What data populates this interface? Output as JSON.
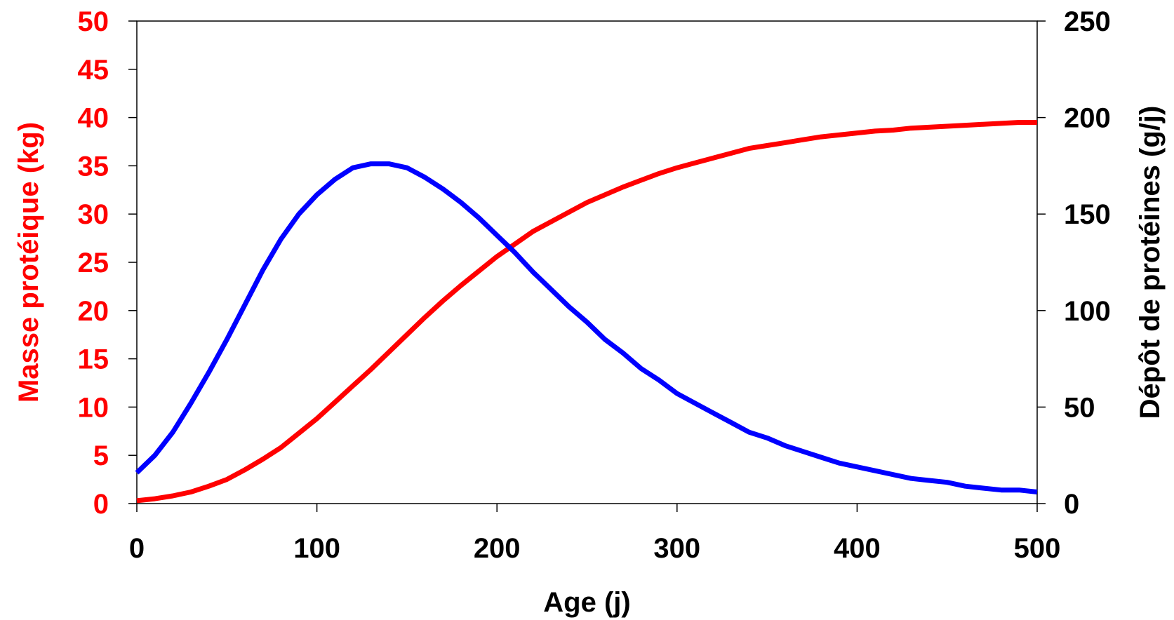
{
  "chart_data": {
    "type": "line",
    "xlabel": "Age (j)",
    "ylabel_left": "Masse protéique (kg)",
    "ylabel_right": "Dépôt de protéines (g/j)",
    "xlim": [
      0,
      500
    ],
    "ylim_left": [
      0,
      50
    ],
    "ylim_right": [
      0,
      250
    ],
    "x_ticks": [
      "0",
      "100",
      "200",
      "300",
      "400",
      "500"
    ],
    "y_left_ticks": [
      "0",
      "5",
      "10",
      "15",
      "20",
      "25",
      "30",
      "35",
      "40",
      "45",
      "50"
    ],
    "y_right_ticks": [
      "0",
      "50",
      "100",
      "150",
      "200",
      "250"
    ],
    "grid": false,
    "colors": {
      "left_axis_text": "#ff0000",
      "right_axis_text": "#000000",
      "masse_series": "#ff0000",
      "depot_series": "#0000ff"
    },
    "series": [
      {
        "axis": "left",
        "color": "#ff0000",
        "x": [
          0,
          10,
          20,
          30,
          40,
          50,
          60,
          70,
          80,
          90,
          100,
          110,
          120,
          130,
          140,
          150,
          160,
          170,
          180,
          190,
          200,
          210,
          220,
          230,
          240,
          250,
          260,
          270,
          280,
          290,
          300,
          310,
          320,
          330,
          340,
          350,
          360,
          370,
          380,
          390,
          400,
          410,
          420,
          430,
          440,
          450,
          460,
          470,
          480,
          490,
          500
        ],
        "y": [
          0.3,
          0.5,
          0.8,
          1.2,
          1.8,
          2.5,
          3.5,
          4.6,
          5.8,
          7.3,
          8.8,
          10.5,
          12.2,
          13.9,
          15.7,
          17.5,
          19.3,
          21.0,
          22.6,
          24.1,
          25.6,
          26.9,
          28.2,
          29.2,
          30.2,
          31.2,
          32.0,
          32.8,
          33.5,
          34.2,
          34.8,
          35.3,
          35.8,
          36.3,
          36.8,
          37.1,
          37.4,
          37.7,
          38.0,
          38.2,
          38.4,
          38.6,
          38.7,
          38.9,
          39.0,
          39.1,
          39.2,
          39.3,
          39.4,
          39.5,
          39.5
        ]
      },
      {
        "axis": "right",
        "color": "#0000ff",
        "x": [
          0,
          10,
          20,
          30,
          40,
          50,
          60,
          70,
          80,
          90,
          100,
          110,
          120,
          130,
          140,
          150,
          160,
          170,
          180,
          190,
          200,
          210,
          220,
          230,
          240,
          250,
          260,
          270,
          280,
          290,
          300,
          310,
          320,
          330,
          340,
          350,
          360,
          370,
          380,
          390,
          400,
          410,
          420,
          430,
          440,
          450,
          460,
          470,
          480,
          490,
          500
        ],
        "y": [
          16,
          25,
          37,
          52,
          68,
          85,
          103,
          121,
          137,
          150,
          160,
          168,
          174,
          176,
          176,
          174,
          169,
          163,
          156,
          148,
          139,
          130,
          120,
          111,
          102,
          94,
          85,
          78,
          70,
          64,
          57,
          52,
          47,
          42,
          37,
          34,
          30,
          27,
          24,
          21,
          19,
          17,
          15,
          13,
          12,
          11,
          9,
          8,
          7,
          7,
          6
        ]
      }
    ]
  }
}
